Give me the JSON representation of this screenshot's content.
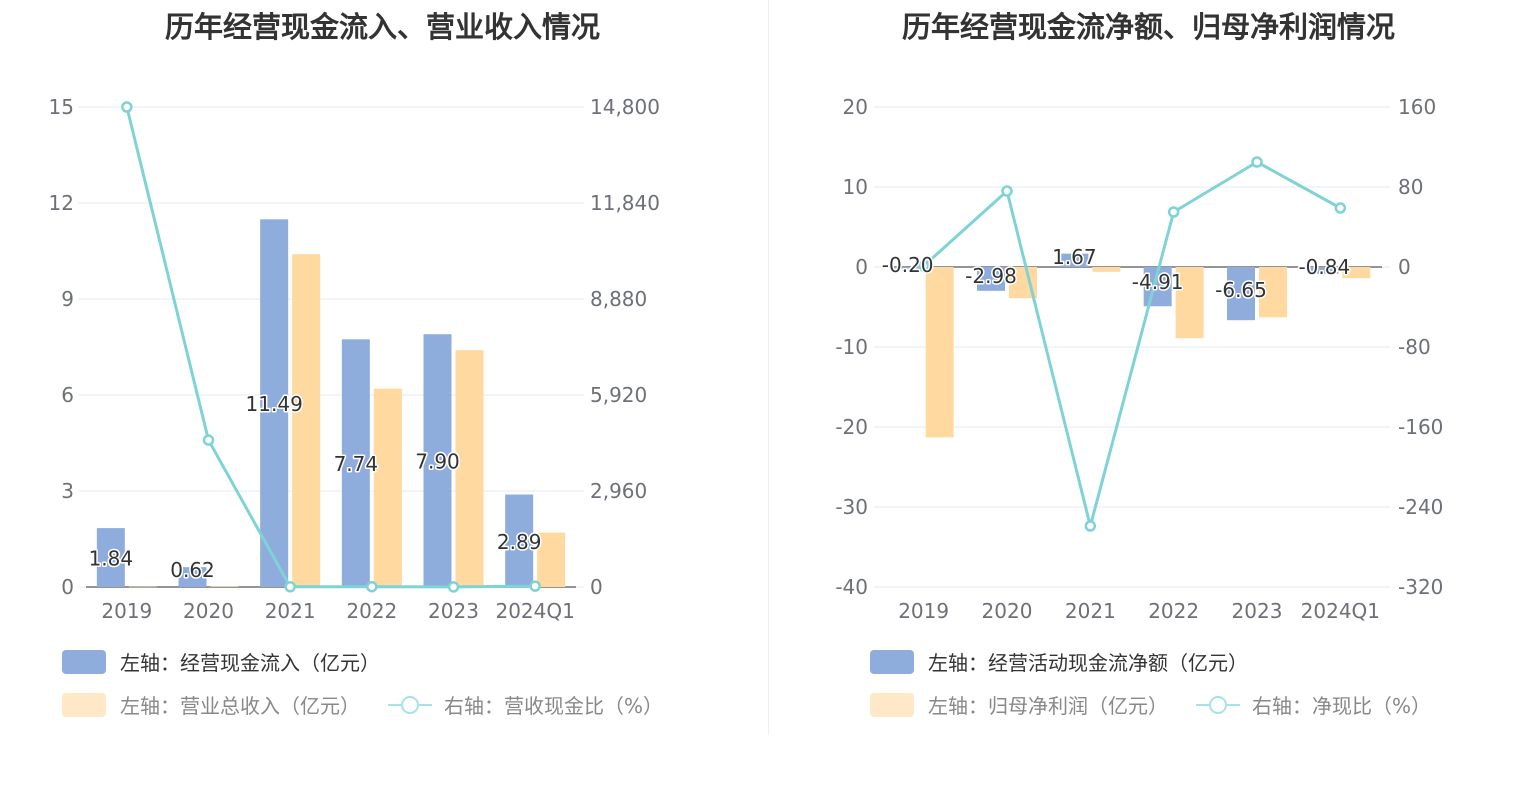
{
  "colors": {
    "bar_primary": "#8eaddc",
    "bar_secondary": "#ffd9a0",
    "line": "#7fd3d6",
    "axis": "#6e7079",
    "grid": "#e3e8f0"
  },
  "chart_data": [
    {
      "type": "bar+line",
      "title": "历年经营现金流入、营业收入情况",
      "categories": [
        "2019",
        "2020",
        "2021",
        "2022",
        "2023",
        "2024Q1"
      ],
      "series": [
        {
          "name": "经营现金流入（亿元）",
          "axis": "left",
          "type": "bar",
          "values": [
            1.84,
            0.62,
            11.49,
            7.74,
            7.9,
            2.89
          ],
          "labels": [
            "1.84",
            "0.62",
            "11.49",
            "7.74",
            "7.90",
            "2.89"
          ]
        },
        {
          "name": "营业总收入（亿元）",
          "axis": "left",
          "type": "bar",
          "values": [
            0.01,
            0.02,
            10.4,
            6.2,
            7.4,
            1.7
          ]
        },
        {
          "name": "营收现金比（%）",
          "axis": "right",
          "type": "line",
          "values": [
            14800,
            4530,
            6,
            8,
            3,
            26
          ]
        }
      ],
      "left_axis": {
        "range": [
          0,
          15
        ],
        "ticks": [
          "0",
          "3",
          "6",
          "9",
          "12",
          "15"
        ]
      },
      "right_axis": {
        "range": [
          0,
          14800
        ],
        "ticks": [
          "0",
          "2,960",
          "5,920",
          "8,880",
          "11,840",
          "14,800"
        ]
      },
      "legend": {
        "prefix_left": "左轴：",
        "prefix_right": "右轴：",
        "row1": [
          "经营现金流入（亿元）"
        ],
        "row2": [
          "营业总收入（亿元）",
          "营收现金比（%）"
        ]
      }
    },
    {
      "type": "bar+line",
      "title": "历年经营现金流净额、归母净利润情况",
      "categories": [
        "2019",
        "2020",
        "2021",
        "2022",
        "2023",
        "2024Q1"
      ],
      "series": [
        {
          "name": "经营活动现金流净额（亿元）",
          "axis": "left",
          "type": "bar",
          "values": [
            -0.2,
            -2.98,
            1.67,
            -4.91,
            -6.65,
            -0.84
          ],
          "labels": [
            "-0.20",
            "-2.98",
            "1.67",
            "-4.91",
            "-6.65",
            "-0.84"
          ]
        },
        {
          "name": "归母净利润（亿元）",
          "axis": "left",
          "type": "bar",
          "values": [
            -21.3,
            -3.9,
            -0.6,
            -8.9,
            -6.3,
            -1.4
          ]
        },
        {
          "name": "净现比（%）",
          "axis": "right",
          "type": "line",
          "values": [
            1,
            76,
            -259,
            55,
            105,
            59
          ]
        }
      ],
      "left_axis": {
        "range": [
          -40,
          20
        ],
        "ticks": [
          "-40",
          "-30",
          "-20",
          "-10",
          "0",
          "10",
          "20"
        ]
      },
      "right_axis": {
        "range": [
          -320,
          160
        ],
        "ticks": [
          "-320",
          "-240",
          "-160",
          "-80",
          "0",
          "80",
          "160"
        ]
      },
      "legend": {
        "prefix_left": "左轴：",
        "prefix_right": "右轴：",
        "row1": [
          "经营活动现金流净额（亿元）"
        ],
        "row2": [
          "归母净利润（亿元）",
          "净现比（%）"
        ]
      }
    }
  ]
}
